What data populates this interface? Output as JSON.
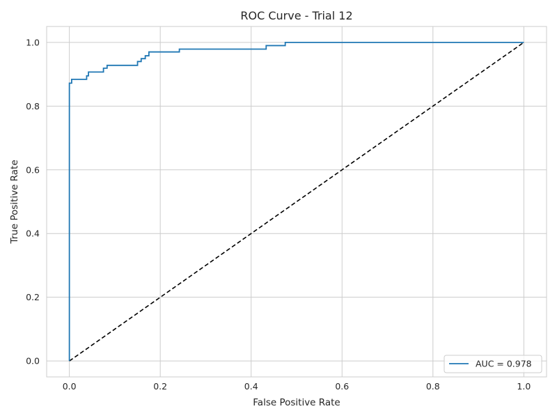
{
  "chart_data": {
    "type": "line",
    "title": "ROC Curve - Trial 12",
    "xlabel": "False Positive Rate",
    "ylabel": "True Positive Rate",
    "xlim": [
      -0.05,
      1.05
    ],
    "ylim": [
      -0.05,
      1.05
    ],
    "xticks": [
      0.0,
      0.2,
      0.4,
      0.6,
      0.8,
      1.0
    ],
    "yticks": [
      0.0,
      0.2,
      0.4,
      0.6,
      0.8,
      1.0
    ],
    "xtick_labels": [
      "0.0",
      "0.2",
      "0.4",
      "0.6",
      "0.8",
      "1.0"
    ],
    "ytick_labels": [
      "0.0",
      "0.2",
      "0.4",
      "0.6",
      "0.8",
      "1.0"
    ],
    "grid": true,
    "legend_position": "lower-right",
    "series": [
      {
        "name": "AUC = 0.978",
        "color": "#1f77b4",
        "style": "solid",
        "x": [
          0.0,
          0.0,
          0.0,
          0.005,
          0.005,
          0.038,
          0.038,
          0.042,
          0.042,
          0.075,
          0.075,
          0.083,
          0.083,
          0.15,
          0.15,
          0.158,
          0.158,
          0.167,
          0.167,
          0.175,
          0.175,
          0.242,
          0.242,
          0.4,
          0.4,
          0.433,
          0.433,
          0.475,
          0.475,
          1.0
        ],
        "y": [
          0.0,
          0.78,
          0.872,
          0.872,
          0.884,
          0.884,
          0.895,
          0.895,
          0.907,
          0.907,
          0.919,
          0.919,
          0.928,
          0.928,
          0.94,
          0.94,
          0.949,
          0.949,
          0.958,
          0.958,
          0.97,
          0.97,
          0.979,
          0.979,
          0.979,
          0.979,
          0.99,
          0.99,
          1.0,
          1.0
        ]
      },
      {
        "name": "",
        "color": "#000000",
        "style": "dashed",
        "x": [
          0.0,
          1.0
        ],
        "y": [
          0.0,
          1.0
        ]
      }
    ]
  }
}
